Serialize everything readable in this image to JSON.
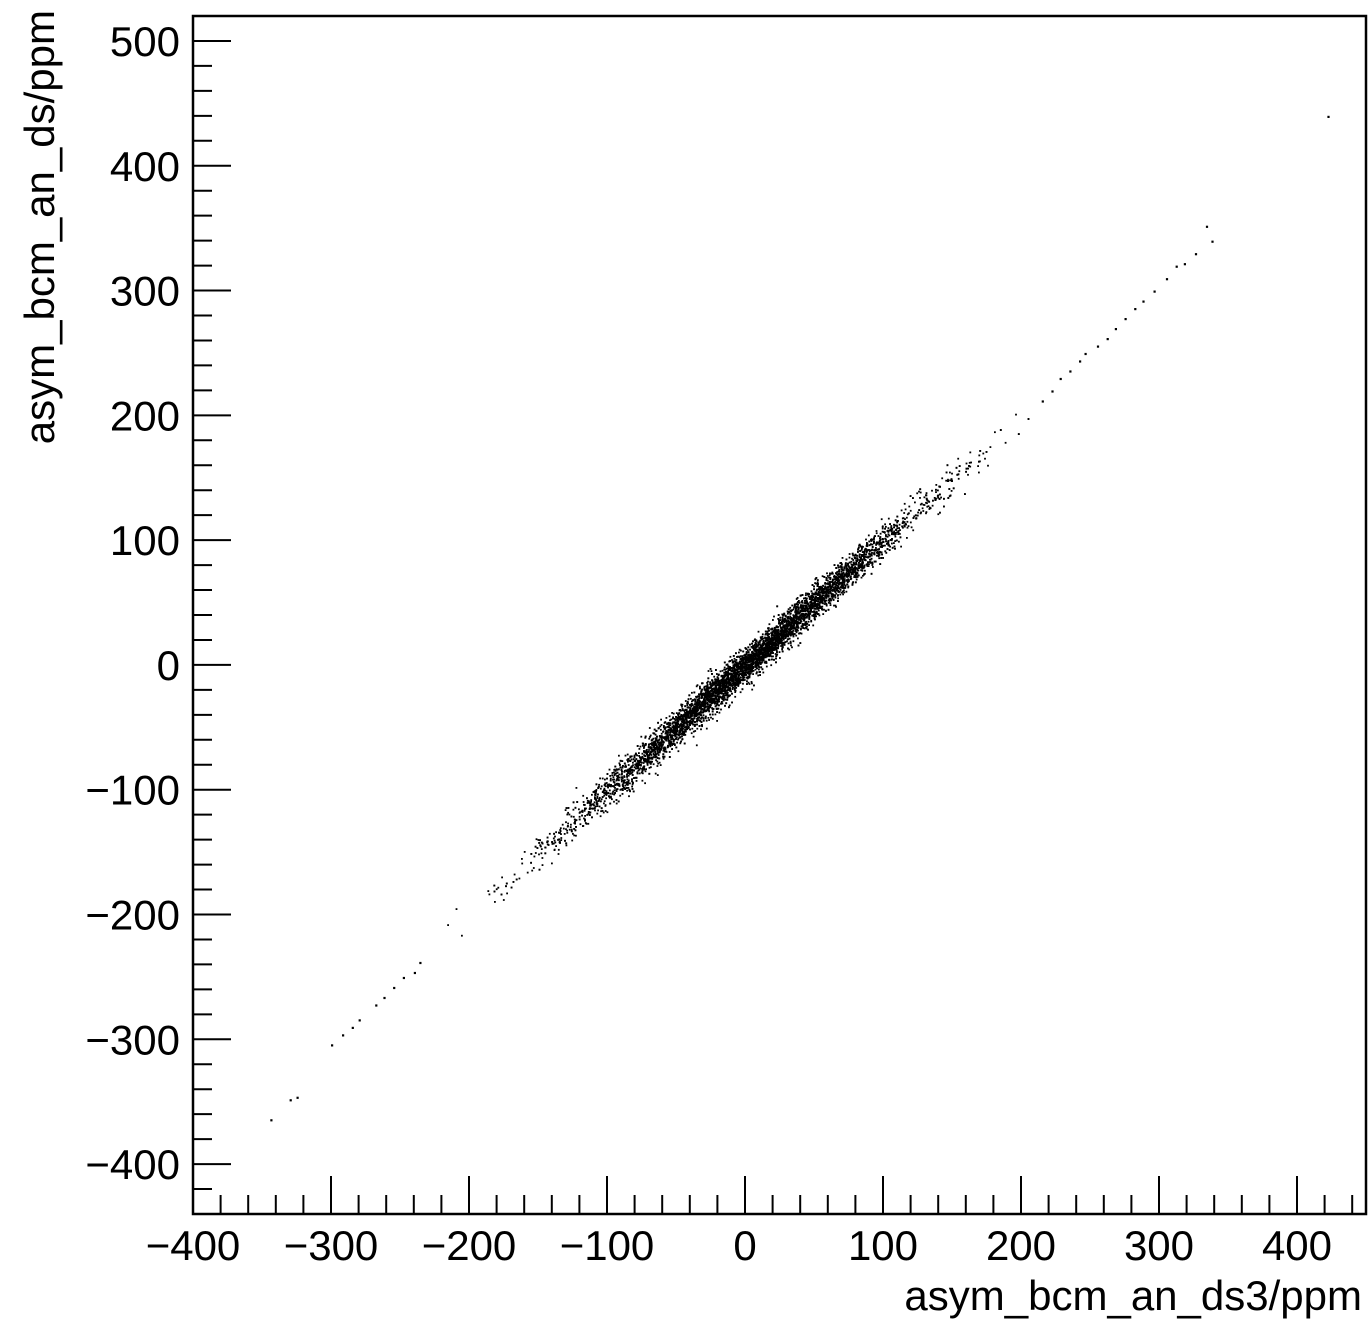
{
  "chart_data": {
    "type": "scatter",
    "title": "",
    "xlabel": "asym_bcm_an_ds3/ppm",
    "ylabel": "asym_bcm_an_ds/ppm",
    "xlim": [
      -400,
      450
    ],
    "ylim": [
      -440,
      520
    ],
    "x_ticks": [
      -400,
      -300,
      -200,
      -100,
      0,
      100,
      200,
      300,
      400
    ],
    "y_ticks": [
      -400,
      -300,
      -200,
      -100,
      0,
      100,
      200,
      300,
      400,
      500
    ],
    "x_tick_labels": [
      "−400",
      "−300",
      "−200",
      "−100",
      "0",
      "100",
      "200",
      "300",
      "400"
    ],
    "y_tick_labels": [
      "−400",
      "−300",
      "−200",
      "−100",
      "0",
      "100",
      "200",
      "300",
      "400",
      "500"
    ],
    "grid": false,
    "trend": {
      "slope": 1.0,
      "intercept": 0,
      "spread_sd": 7
    },
    "core_x_range": [
      -230,
      210
    ],
    "sparse_points": [
      [
        -344,
        -364
      ],
      [
        -330,
        -348
      ],
      [
        -325,
        -346
      ],
      [
        -300,
        -304
      ],
      [
        -292,
        -296
      ],
      [
        -285,
        -290
      ],
      [
        -280,
        -284
      ],
      [
        -268,
        -272
      ],
      [
        -262,
        -266
      ],
      [
        -255,
        -258
      ],
      [
        -248,
        -250
      ],
      [
        -240,
        -246
      ],
      [
        -236,
        -238
      ],
      [
        215,
        212
      ],
      [
        222,
        220
      ],
      [
        228,
        230
      ],
      [
        235,
        236
      ],
      [
        242,
        244
      ],
      [
        246,
        250
      ],
      [
        255,
        256
      ],
      [
        262,
        262
      ],
      [
        268,
        270
      ],
      [
        275,
        278
      ],
      [
        282,
        286
      ],
      [
        288,
        292
      ],
      [
        296,
        300
      ],
      [
        305,
        310
      ],
      [
        312,
        320
      ],
      [
        318,
        322
      ],
      [
        326,
        330
      ],
      [
        334,
        352
      ],
      [
        338,
        340
      ],
      [
        422,
        440
      ]
    ],
    "marker_color": "#000000"
  }
}
